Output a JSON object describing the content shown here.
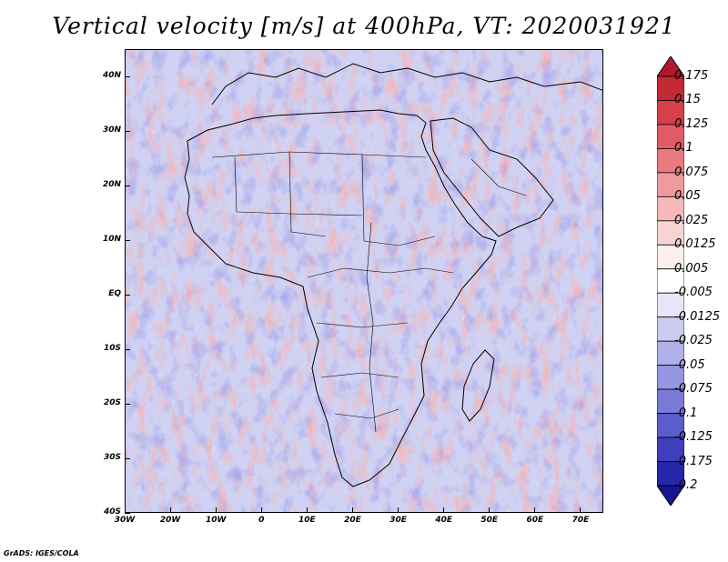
{
  "title": "Vertical velocity [m/s] at 400hPa, VT: 2020031921",
  "credit": "GrADS: IGES/COLA",
  "map": {
    "lon_range": [
      -30,
      75
    ],
    "lat_range": [
      -40,
      45
    ],
    "x_ticks": [
      "30W",
      "20W",
      "10W",
      "0",
      "10E",
      "20E",
      "30E",
      "40E",
      "50E",
      "60E",
      "70E"
    ],
    "y_ticks": [
      "40N",
      "30N",
      "20N",
      "10N",
      "EQ",
      "10S",
      "20S",
      "30S",
      "40S"
    ]
  },
  "colorbar": {
    "labels": [
      "0.175",
      "0.15",
      "0.125",
      "0.1",
      "0.075",
      "0.05",
      "0.025",
      "0.0125",
      "0.005",
      "-0.005",
      "-0.0125",
      "-0.025",
      "-0.05",
      "-0.075",
      "-0.1",
      "-0.125",
      "-0.175",
      "-0.2"
    ],
    "colors": [
      "#b2182b",
      "#c42a35",
      "#d6404a",
      "#e35b63",
      "#eb7a80",
      "#f19a9d",
      "#f6b8ba",
      "#f9d3d4",
      "#fdeeee",
      "#ffffff",
      "#e6e6f8",
      "#ccccf1",
      "#b1b1ea",
      "#9696e2",
      "#7a7ad9",
      "#5c5ccc",
      "#3f3fbd",
      "#2626aa",
      "#141494"
    ]
  }
}
